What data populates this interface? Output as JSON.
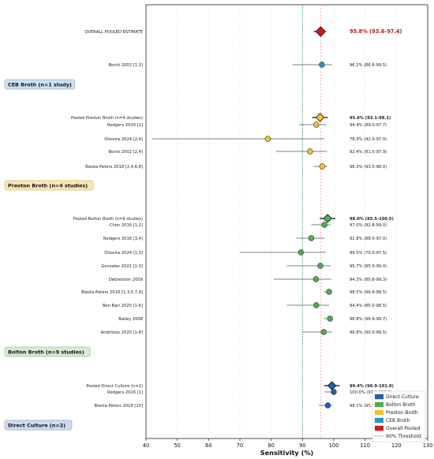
{
  "chart_data": {
    "type": "forest",
    "xlabel": "Sensitivity (%)",
    "xlim": [
      40,
      130
    ],
    "xticks": [
      40,
      50,
      60,
      70,
      80,
      90,
      100,
      110,
      120,
      130
    ],
    "threshold": 90,
    "rows": [
      {
        "label": "OVERALL POOLED ESTIMATE",
        "est": 95.8,
        "lo": 93.6,
        "hi": 97.4,
        "text": "95.8% (93.6-97.4)",
        "kind": "overall",
        "color": "#d11a1a"
      },
      {
        "label": "Borck 2002 [1,3]",
        "est": 96.2,
        "lo": 86.8,
        "hi": 99.5,
        "text": "96.2% (86.8-99.5)",
        "kind": "study",
        "color": "#2196c8"
      },
      {
        "label": "Pooled Preston Broth (n=4 studies)",
        "est": 95.6,
        "lo": 93.1,
        "hi": 98.1,
        "text": "95.6% (93.1-98.1)",
        "kind": "pooled",
        "color": "#f2c12e"
      },
      {
        "label": "Rodgers 2016 [2]",
        "est": 94.4,
        "lo": 89.0,
        "hi": 97.7,
        "text": "94.4% (89.0-97.7)",
        "kind": "study",
        "color": "#f2c12e"
      },
      {
        "label": "Oliveira 2024 [2,4]",
        "est": 78.9,
        "lo": 42.0,
        "hi": 97.0,
        "text": "78.9% (42.0-97.0)",
        "kind": "study",
        "color": "#f2c12e"
      },
      {
        "label": "Borck 2002 [2,4]",
        "est": 92.4,
        "lo": 81.5,
        "hi": 97.9,
        "text": "92.4% (81.5-97.9)",
        "kind": "study",
        "color": "#f2c12e"
      },
      {
        "label": "Biesta-Peters 2018 [2,4,6,8]",
        "est": 96.3,
        "lo": 93.5,
        "hi": 98.0,
        "text": "96.3% (93.5-98.0)",
        "kind": "study",
        "color": "#f2c12e"
      },
      {
        "label": "Pooled Bolton Broth (n=9 studies)",
        "est": 98.0,
        "lo": 95.5,
        "hi": 100.5,
        "text": "98.0% (95.5-100.5)",
        "kind": "pooled",
        "color": "#4caf50"
      },
      {
        "label": "Chon 2016 [1,2]",
        "est": 97.0,
        "lo": 92.8,
        "hi": 99.0,
        "text": "97.0% (92.8-99.0)",
        "kind": "study",
        "color": "#4caf50"
      },
      {
        "label": "Rodgers 2016 [3,4]",
        "est": 92.8,
        "lo": 88.0,
        "hi": 97.0,
        "text": "92.8% (88.0-97.0)",
        "kind": "study",
        "color": "#4caf50"
      },
      {
        "label": "Oliveira 2024 [1,3]",
        "est": 89.5,
        "lo": 70.0,
        "hi": 97.5,
        "text": "89.5% (70.0-97.5)",
        "kind": "study",
        "color": "#4caf50"
      },
      {
        "label": "Gonzales 2022 [1-3]",
        "est": 95.7,
        "lo": 85.0,
        "hi": 99.0,
        "text": "95.7% (85.0-99.0)",
        "kind": "study",
        "color": "#4caf50"
      },
      {
        "label": "Debretsion 2009",
        "est": 94.3,
        "lo": 80.8,
        "hi": 99.3,
        "text": "94.3% (80.8-99.3)",
        "kind": "study",
        "color": "#4caf50"
      },
      {
        "label": "Biesta-Peters 2018 [1,3,5,7,9]",
        "est": 98.5,
        "lo": 96.8,
        "hi": 99.5,
        "text": "98.5% (96.8-99.5)",
        "kind": "study",
        "color": "#4caf50"
      },
      {
        "label": "Ben Bari 2020 [1-6]",
        "est": 94.4,
        "lo": 85.0,
        "hi": 98.5,
        "text": "94.4% (85.0-98.5)",
        "kind": "study",
        "color": "#4caf50"
      },
      {
        "label": "Bailey 2008",
        "est": 98.8,
        "lo": 96.9,
        "hi": 99.7,
        "text": "98.8% (96.9-99.7)",
        "kind": "study",
        "color": "#4caf50"
      },
      {
        "label": "Andritsos 2020 [1-8]",
        "est": 96.8,
        "lo": 90.0,
        "hi": 99.5,
        "text": "96.8% (90.0-99.5)",
        "kind": "study",
        "color": "#4caf50"
      },
      {
        "label": "Pooled Direct Culture (n=2)",
        "est": 99.4,
        "lo": 96.9,
        "hi": 101.9,
        "text": "99.4% (96.9-101.9)",
        "kind": "pooled",
        "color": "#1f5fb4"
      },
      {
        "label": "Rodgers 2016 [1]",
        "est": 100.0,
        "lo": 97.1,
        "hi": 100.0,
        "text": "100.0% (97.1-100.0)",
        "kind": "study",
        "color": "#1f5fb4"
      },
      {
        "label": "Biesta-Peters 2018 [10]",
        "est": 98.1,
        "lo": 95.2,
        "hi": 99.5,
        "text": "98.1% (95.2-99.5)",
        "kind": "study",
        "color": "#1f5fb4"
      }
    ],
    "groups": [
      {
        "label": "CEB Broth (n=1 study)",
        "fill": "#cfe1ef",
        "stroke": "#8fb1cc"
      },
      {
        "label": "Preston Broth (n=4 studies)",
        "fill": "#f8e6b5",
        "stroke": "#d7bd73"
      },
      {
        "label": "Bolton Broth (n=9 studies)",
        "fill": "#d4ecd0",
        "stroke": "#98c592"
      },
      {
        "label": "Direct Culture (n=2)",
        "fill": "#cfdcef",
        "stroke": "#8ea7cc"
      }
    ],
    "legend": {
      "position": "bottom-right",
      "entries": [
        {
          "name": "Direct Culture",
          "color": "#1f5fb4",
          "style": "patch"
        },
        {
          "name": "Bolton Broth",
          "color": "#4caf50",
          "style": "patch"
        },
        {
          "name": "Preston Broth",
          "color": "#f2c12e",
          "style": "patch"
        },
        {
          "name": "CEB Broth",
          "color": "#2196c8",
          "style": "patch"
        },
        {
          "name": "Overall Pooled",
          "color": "#d11a1a",
          "style": "patch"
        },
        {
          "name": "90% Threshold",
          "color": "#2a9d5c",
          "style": "dotted"
        }
      ]
    },
    "grid": {
      "x": true,
      "y": false
    }
  }
}
